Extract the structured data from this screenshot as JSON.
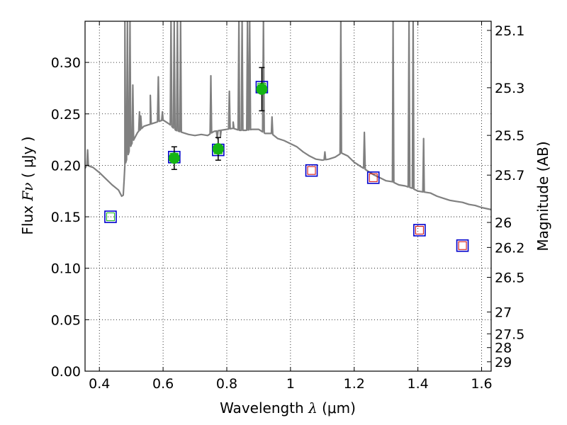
{
  "chart_data": {
    "type": "scatter",
    "title": "",
    "xlabel": "Wavelength",
    "xlabel_symbol": "λ",
    "xlabel_unit": "(μm)",
    "ylabel_left_prefix": "Flux",
    "ylabel_left_symbol": "Fν",
    "ylabel_left_unit": "( μJy )",
    "ylabel_right": "Magnitude (AB)",
    "xlim": [
      0.355,
      1.63
    ],
    "ylim": [
      0.0,
      0.34
    ],
    "grid": true,
    "grid_style": "dotted",
    "x_ticks": [
      0.4,
      0.6,
      0.8,
      1.0,
      1.2,
      1.4,
      1.6
    ],
    "x_tick_labels": [
      "0.4",
      "0.6",
      "0.8",
      "1",
      "1.2",
      "1.4",
      "1.6"
    ],
    "y_ticks": [
      0.0,
      0.05,
      0.1,
      0.15,
      0.2,
      0.25,
      0.3
    ],
    "y_tick_labels": [
      "0.00",
      "0.05",
      "0.10",
      "0.15",
      "0.20",
      "0.25",
      "0.30"
    ],
    "mag_ticks": [
      {
        "label": "25.1",
        "flux": 0.3311
      },
      {
        "label": "25.3",
        "flux": 0.2754
      },
      {
        "label": "25.5",
        "flux": 0.2291
      },
      {
        "label": "25.7",
        "flux": 0.1905
      },
      {
        "label": "26",
        "flux": 0.1445
      },
      {
        "label": "26.2",
        "flux": 0.1202
      },
      {
        "label": "26.5",
        "flux": 0.0912
      },
      {
        "label": "27",
        "flux": 0.0575
      },
      {
        "label": "27.5",
        "flux": 0.0363
      },
      {
        "label": "28",
        "flux": 0.0229
      },
      {
        "label": "29",
        "flux": 0.0091
      }
    ],
    "colors": {
      "model": "#808080",
      "detection": "#14b414",
      "box_outer": "#0000cc",
      "box_inner_detected": "#14b414",
      "box_inner_upper": "#cc0000",
      "errorbar": "#000000",
      "frame": "#000000"
    },
    "observed": [
      {
        "x": 0.435,
        "y": 0.15,
        "err": null,
        "detected": false,
        "inner": "green"
      },
      {
        "x": 0.635,
        "y": 0.207,
        "err": 0.011,
        "detected": true,
        "inner": "green"
      },
      {
        "x": 0.773,
        "y": 0.216,
        "err": 0.011,
        "detected": true,
        "inner": "green"
      },
      {
        "x": 0.91,
        "y": 0.274,
        "err": 0.021,
        "detected": true,
        "inner": "green"
      }
    ],
    "model_photometry": [
      {
        "x": 0.435,
        "y": 0.15
      },
      {
        "x": 0.635,
        "y": 0.208
      },
      {
        "x": 0.773,
        "y": 0.215
      },
      {
        "x": 0.91,
        "y": 0.276
      },
      {
        "x": 1.066,
        "y": 0.195
      },
      {
        "x": 1.26,
        "y": 0.188
      },
      {
        "x": 1.405,
        "y": 0.137
      },
      {
        "x": 1.54,
        "y": 0.122
      }
    ],
    "model_spectrum_continuum": [
      [
        0.355,
        0.197
      ],
      [
        0.36,
        0.2
      ],
      [
        0.38,
        0.198
      ],
      [
        0.4,
        0.193
      ],
      [
        0.42,
        0.187
      ],
      [
        0.44,
        0.181
      ],
      [
        0.46,
        0.176
      ],
      [
        0.47,
        0.17
      ],
      [
        0.475,
        0.171
      ],
      [
        0.48,
        0.2
      ],
      [
        0.5,
        0.22
      ],
      [
        0.52,
        0.232
      ],
      [
        0.54,
        0.238
      ],
      [
        0.56,
        0.24
      ],
      [
        0.58,
        0.242
      ],
      [
        0.6,
        0.244
      ],
      [
        0.62,
        0.24
      ],
      [
        0.64,
        0.234
      ],
      [
        0.66,
        0.232
      ],
      [
        0.68,
        0.23
      ],
      [
        0.7,
        0.229
      ],
      [
        0.72,
        0.23
      ],
      [
        0.74,
        0.229
      ],
      [
        0.76,
        0.233
      ],
      [
        0.78,
        0.234
      ],
      [
        0.8,
        0.235
      ],
      [
        0.82,
        0.236
      ],
      [
        0.84,
        0.234
      ],
      [
        0.86,
        0.234
      ],
      [
        0.88,
        0.235
      ],
      [
        0.9,
        0.235
      ],
      [
        0.92,
        0.231
      ],
      [
        0.94,
        0.231
      ],
      [
        0.96,
        0.226
      ],
      [
        0.98,
        0.224
      ],
      [
        1.0,
        0.221
      ],
      [
        1.02,
        0.218
      ],
      [
        1.04,
        0.213
      ],
      [
        1.06,
        0.209
      ],
      [
        1.08,
        0.206
      ],
      [
        1.1,
        0.205
      ],
      [
        1.12,
        0.206
      ],
      [
        1.14,
        0.208
      ],
      [
        1.16,
        0.212
      ],
      [
        1.18,
        0.209
      ],
      [
        1.2,
        0.203
      ],
      [
        1.22,
        0.199
      ],
      [
        1.24,
        0.195
      ],
      [
        1.26,
        0.191
      ],
      [
        1.28,
        0.188
      ],
      [
        1.3,
        0.185
      ],
      [
        1.32,
        0.184
      ],
      [
        1.34,
        0.181
      ],
      [
        1.36,
        0.18
      ],
      [
        1.38,
        0.178
      ],
      [
        1.4,
        0.175
      ],
      [
        1.42,
        0.174
      ],
      [
        1.44,
        0.173
      ],
      [
        1.46,
        0.17
      ],
      [
        1.48,
        0.168
      ],
      [
        1.5,
        0.166
      ],
      [
        1.52,
        0.165
      ],
      [
        1.54,
        0.164
      ],
      [
        1.56,
        0.162
      ],
      [
        1.58,
        0.161
      ],
      [
        1.6,
        0.159
      ],
      [
        1.63,
        0.157
      ]
    ],
    "model_spectrum_lines": [
      {
        "x": 0.363,
        "peak": 0.215
      },
      {
        "x": 0.48,
        "peak": 0.34
      },
      {
        "x": 0.488,
        "peak": 0.34
      },
      {
        "x": 0.496,
        "peak": 0.34
      },
      {
        "x": 0.505,
        "peak": 0.278
      },
      {
        "x": 0.526,
        "peak": 0.252
      },
      {
        "x": 0.53,
        "peak": 0.248
      },
      {
        "x": 0.56,
        "peak": 0.268
      },
      {
        "x": 0.585,
        "peak": 0.286
      },
      {
        "x": 0.598,
        "peak": 0.252
      },
      {
        "x": 0.625,
        "peak": 0.34
      },
      {
        "x": 0.635,
        "peak": 0.34
      },
      {
        "x": 0.645,
        "peak": 0.34
      },
      {
        "x": 0.655,
        "peak": 0.34
      },
      {
        "x": 0.75,
        "peak": 0.287
      },
      {
        "x": 0.77,
        "peak": 0.226
      },
      {
        "x": 0.78,
        "peak": 0.228
      },
      {
        "x": 0.808,
        "peak": 0.272
      },
      {
        "x": 0.82,
        "peak": 0.242
      },
      {
        "x": 0.838,
        "peak": 0.34
      },
      {
        "x": 0.848,
        "peak": 0.34
      },
      {
        "x": 0.865,
        "peak": 0.34
      },
      {
        "x": 0.872,
        "peak": 0.34
      },
      {
        "x": 0.915,
        "peak": 0.34
      },
      {
        "x": 0.942,
        "peak": 0.247
      },
      {
        "x": 1.108,
        "peak": 0.213
      },
      {
        "x": 1.158,
        "peak": 0.34
      },
      {
        "x": 1.232,
        "peak": 0.232
      },
      {
        "x": 1.322,
        "peak": 0.34
      },
      {
        "x": 1.372,
        "peak": 0.34
      },
      {
        "x": 1.385,
        "peak": 0.34
      },
      {
        "x": 1.418,
        "peak": 0.226
      }
    ]
  }
}
